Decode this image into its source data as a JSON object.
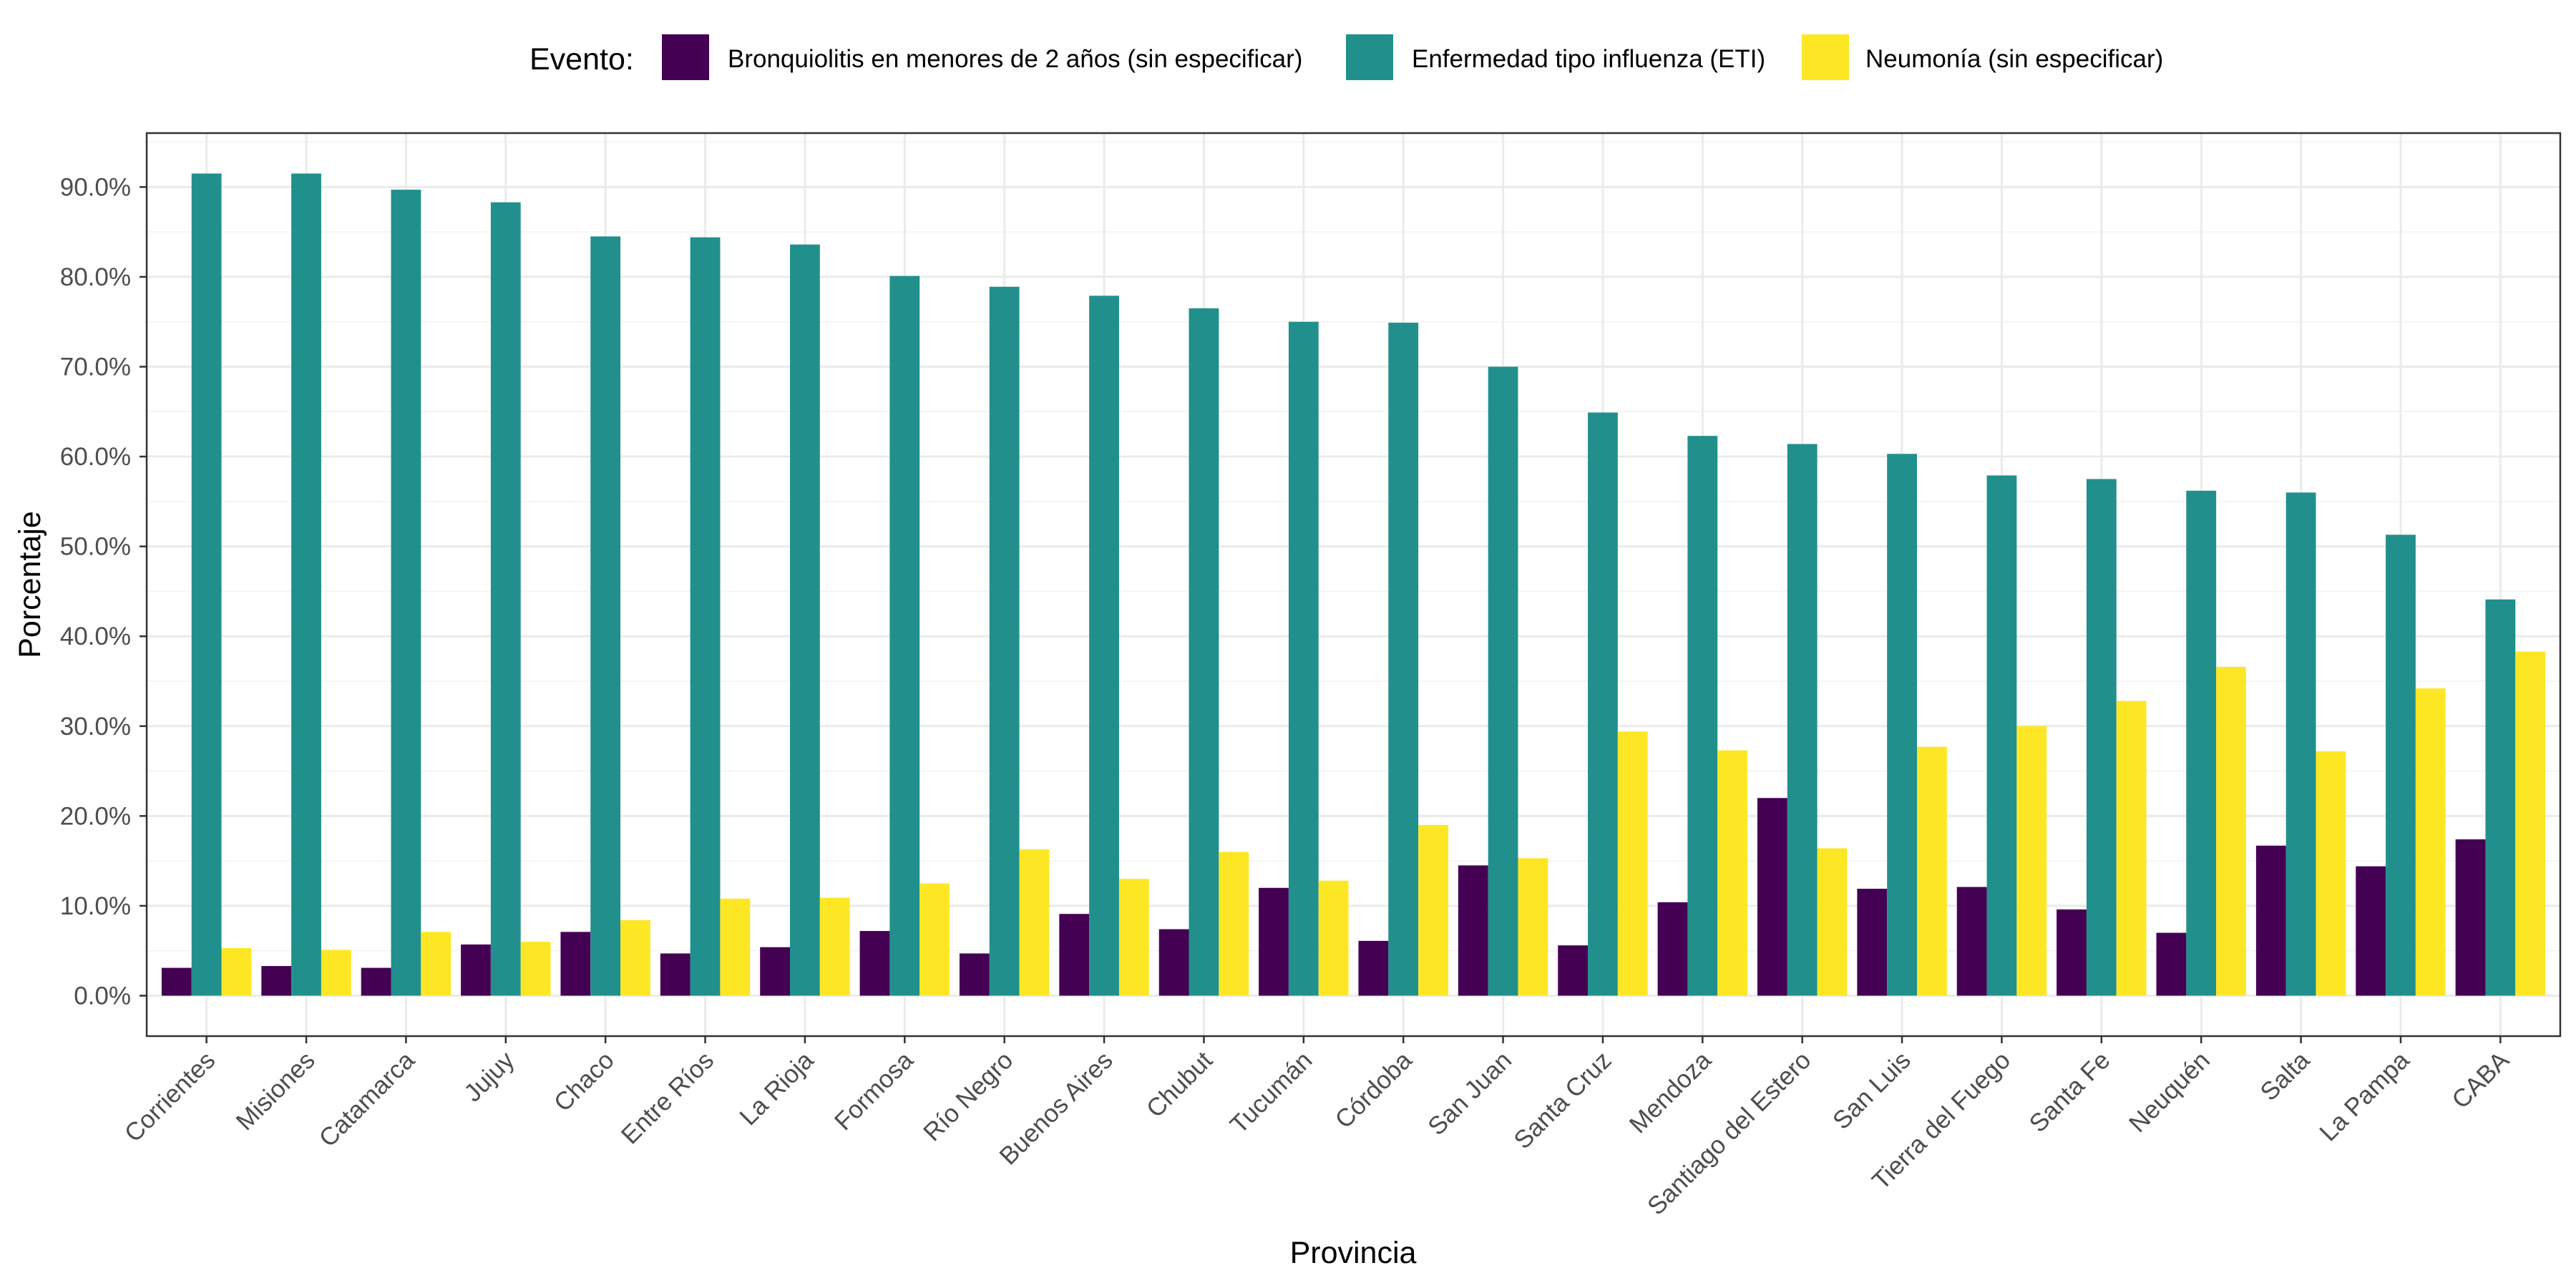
{
  "chart_data": {
    "type": "bar",
    "xlabel": "Provincia",
    "ylabel": "Porcentaje",
    "ylim": [
      -4.5,
      96
    ],
    "yticks": [
      0,
      10,
      20,
      30,
      40,
      50,
      60,
      70,
      80,
      90
    ],
    "ytick_labels": [
      "0.0%",
      "10.0%",
      "20.0%",
      "30.0%",
      "40.0%",
      "50.0%",
      "60.0%",
      "70.0%",
      "80.0%",
      "90.0%"
    ],
    "grid": true,
    "legend": {
      "title": "Evento:",
      "position": "top"
    },
    "categories": [
      "Corrientes",
      "Misiones",
      "Catamarca",
      "Jujuy",
      "Chaco",
      "Entre Ríos",
      "La Rioja",
      "Formosa",
      "Río Negro",
      "Buenos Aires",
      "Chubut",
      "Tucumán",
      "Córdoba",
      "San Juan",
      "Santa Cruz",
      "Mendoza",
      "Santiago del Estero",
      "San Luis",
      "Tierra del Fuego",
      "Santa Fe",
      "Neuquén",
      "Salta",
      "La Pampa",
      "CABA"
    ],
    "series": [
      {
        "name": "Bronquiolitis en menores de 2 años (sin especificar)",
        "color": "#440154",
        "values": [
          3.1,
          3.3,
          3.1,
          5.7,
          7.1,
          4.7,
          5.4,
          7.2,
          4.7,
          9.1,
          7.4,
          12.0,
          6.1,
          14.5,
          5.6,
          10.4,
          22.0,
          11.9,
          12.1,
          9.6,
          7.0,
          16.7,
          14.4,
          17.4
        ]
      },
      {
        "name": "Enfermedad tipo influenza (ETI)",
        "color": "#21908C",
        "values": [
          91.5,
          91.5,
          89.7,
          88.3,
          84.5,
          84.4,
          83.6,
          80.1,
          78.9,
          77.9,
          76.5,
          75.0,
          74.9,
          70.0,
          64.9,
          62.3,
          61.4,
          60.3,
          57.9,
          57.5,
          56.2,
          56.0,
          51.3,
          44.1
        ]
      },
      {
        "name": "Neumonía (sin especificar)",
        "color": "#FDE725",
        "values": [
          5.3,
          5.1,
          7.1,
          6.0,
          8.4,
          10.8,
          10.9,
          12.5,
          16.3,
          13.0,
          16.0,
          12.8,
          19.0,
          15.3,
          29.4,
          27.3,
          16.4,
          27.7,
          30.0,
          32.8,
          36.6,
          27.2,
          34.2,
          38.3
        ]
      }
    ]
  }
}
